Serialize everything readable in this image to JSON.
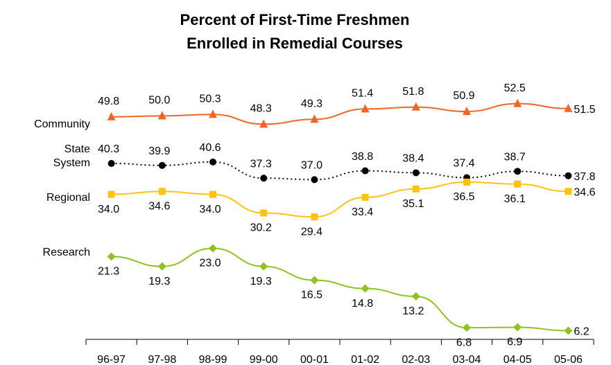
{
  "chart_data": {
    "type": "line",
    "title": [
      "Percent of First-Time Freshmen",
      "Enrolled in Remedial Courses"
    ],
    "categories": [
      "96-97",
      "97-98",
      "98-99",
      "99-00",
      "00-01",
      "01-02",
      "02-03",
      "03-04",
      "04-05",
      "05-06"
    ],
    "ylim": [
      4,
      54
    ],
    "series": [
      {
        "name": "Community",
        "color": "#f26522",
        "marker": "triangle",
        "dash": false,
        "values": [
          49.8,
          50.0,
          50.3,
          48.3,
          49.3,
          51.4,
          51.8,
          50.9,
          52.5,
          51.5
        ],
        "value_labels": [
          "49.8",
          "50.0",
          "50.3",
          "48.3",
          "49.3",
          "51.4",
          "51.8",
          "50.9",
          "52.5",
          "51.5"
        ]
      },
      {
        "name": "State System",
        "color": "#000000",
        "marker": "circle",
        "dash": true,
        "values": [
          40.3,
          39.9,
          40.6,
          37.3,
          37.0,
          38.8,
          38.4,
          37.4,
          38.7,
          37.8
        ],
        "value_labels": [
          "40.3",
          "39.9",
          "40.6",
          "37.3",
          "37.0",
          "38.8",
          "38.4",
          "37.4",
          "38.7",
          "37.8"
        ]
      },
      {
        "name": "Regional",
        "color": "#ffc20e",
        "marker": "square",
        "dash": false,
        "values": [
          34.0,
          34.6,
          34.0,
          30.2,
          29.4,
          33.4,
          35.1,
          36.5,
          36.1,
          34.6
        ],
        "value_labels": [
          "34.0",
          "34.6",
          "34.0",
          "30.2",
          "29.4",
          "33.4",
          "35.1",
          "36.5",
          "36.1",
          "34.6"
        ]
      },
      {
        "name": "Research",
        "color": "#8dc21f",
        "marker": "diamond",
        "dash": false,
        "values": [
          21.3,
          19.3,
          23.0,
          19.3,
          16.5,
          14.8,
          13.2,
          6.8,
          6.9,
          6.2
        ],
        "value_labels": [
          "21.3",
          "19.3",
          "23.0",
          "19.3",
          "16.5",
          "14.8",
          "13.2",
          "6.8",
          "6.9",
          "6.2"
        ]
      }
    ]
  }
}
